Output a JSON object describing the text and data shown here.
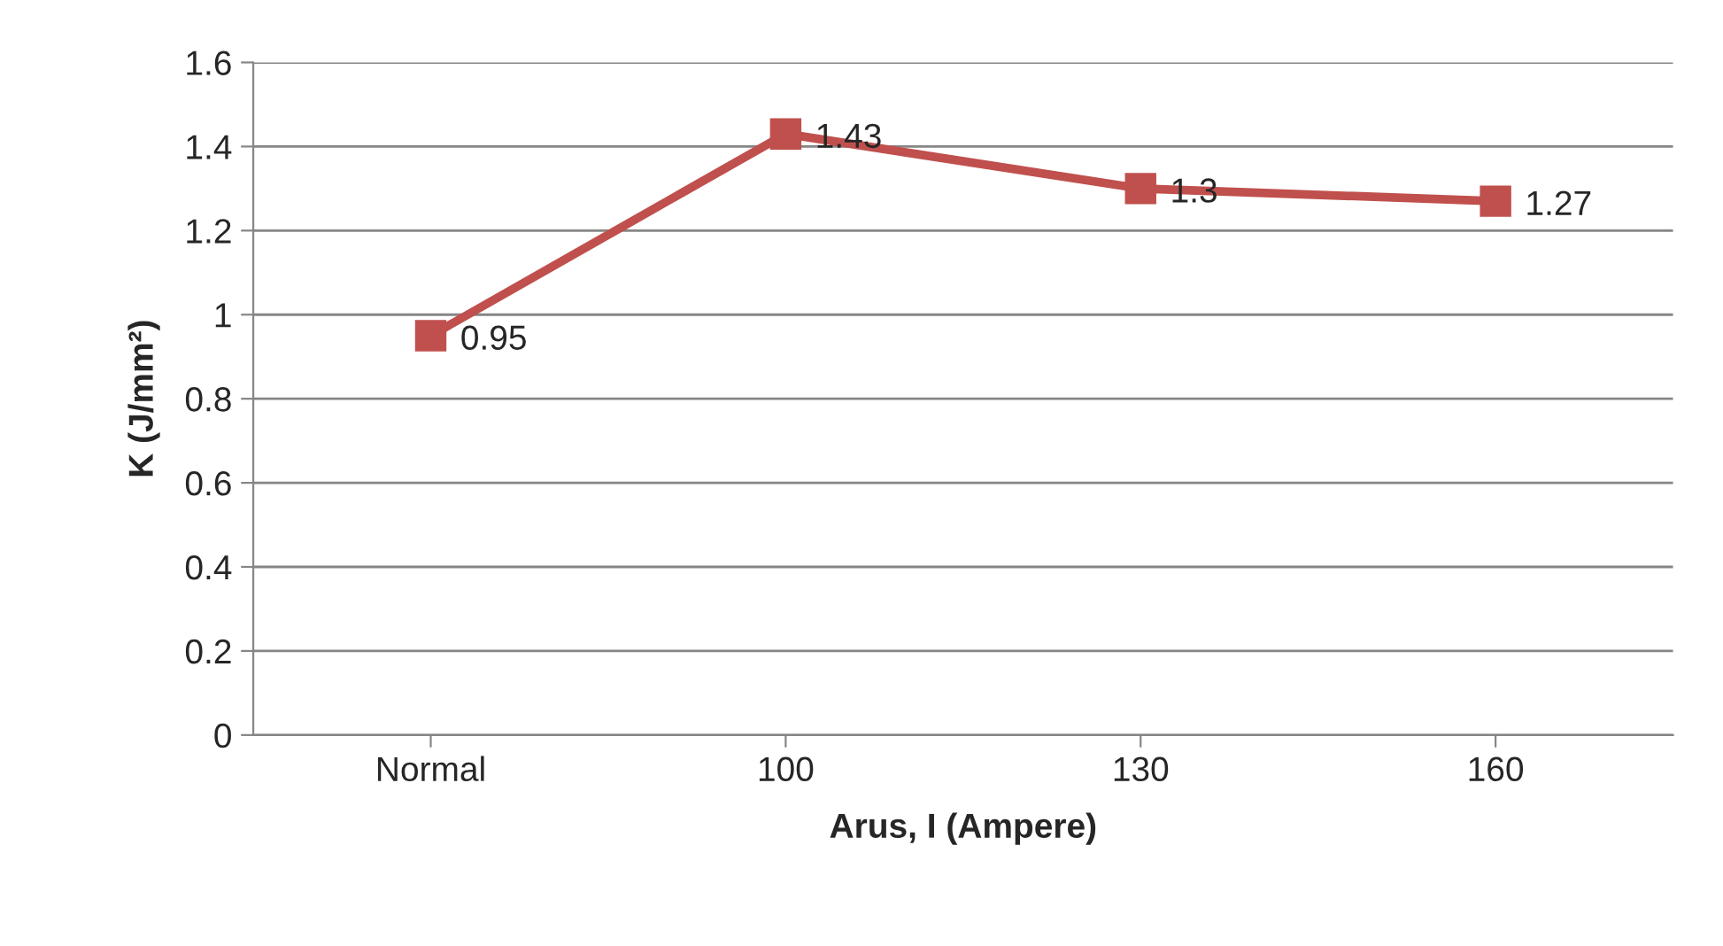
{
  "chart_data": {
    "type": "line",
    "xlabel": "Arus, I (Ampere)",
    "ylabel": "K (J/mm²)",
    "categories": [
      "Normal",
      "100",
      "130",
      "160"
    ],
    "series": [
      {
        "color": "#c0504d",
        "values": [
          0.95,
          1.43,
          1.3,
          1.27
        ]
      }
    ],
    "ylim": [
      0,
      1.6
    ],
    "yticks": [
      0,
      0.2,
      0.4,
      0.6,
      0.8,
      1,
      1.2,
      1.4,
      1.6
    ],
    "grid": "y",
    "marker": "square",
    "line_style": "solid",
    "data_labels": true,
    "legend": false
  }
}
